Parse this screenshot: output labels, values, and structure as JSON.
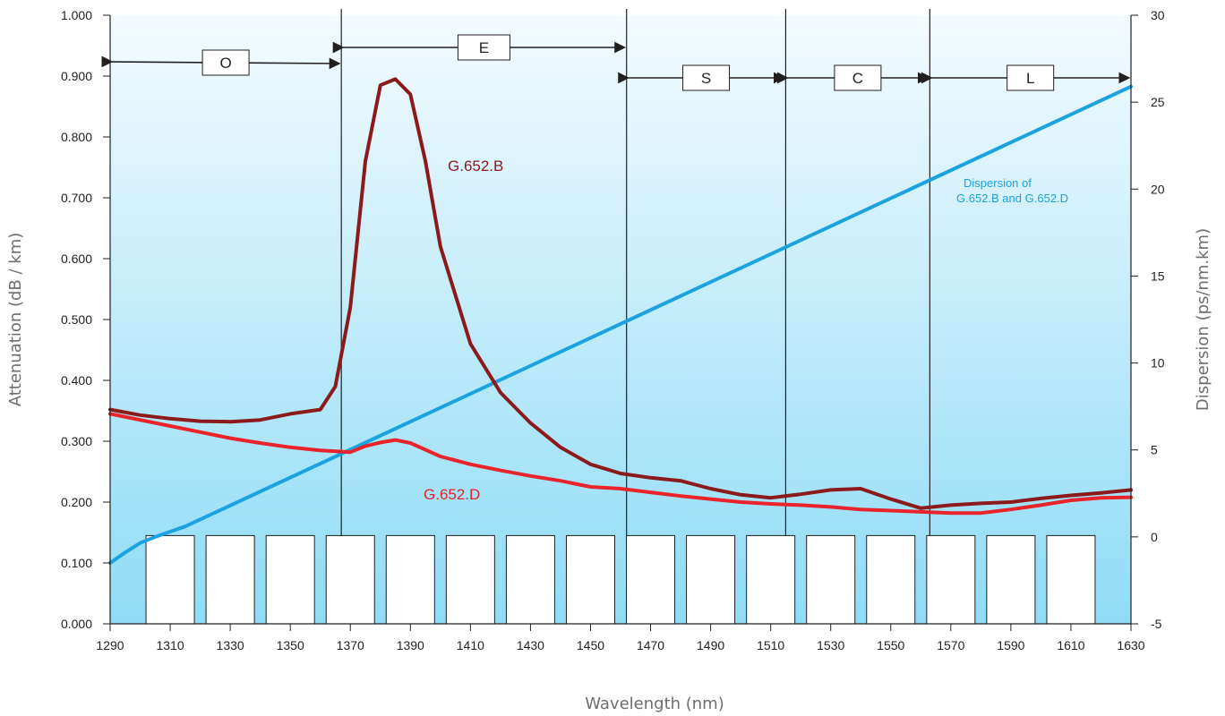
{
  "chart_data": {
    "type": "line",
    "xlabel": "Wavelength (nm)",
    "ylabel": "Attenuation (dB / km)",
    "y2label": "Dispersion (ps/nm.km)",
    "xlim": [
      1290,
      1630
    ],
    "ylim": [
      0,
      1.0
    ],
    "y2lim": [
      -5,
      30
    ],
    "x_ticks": [
      "1290",
      "1310",
      "1330",
      "1350",
      "1370",
      "1390",
      "1410",
      "1430",
      "1450",
      "1470",
      "1490",
      "1510",
      "1530",
      "1550",
      "1570",
      "1590",
      "1610",
      "1630"
    ],
    "y_ticks": [
      "0.000",
      "0.100",
      "0.200",
      "0.300",
      "0.400",
      "0.500",
      "0.600",
      "0.700",
      "0.800",
      "0.900",
      "1.000"
    ],
    "y2_ticks": [
      "-5",
      "0",
      "5",
      "10",
      "15",
      "20",
      "25",
      "30"
    ],
    "background_gradient": [
      "#f4fbfe",
      "#8fdcf6"
    ],
    "bands": [
      {
        "label": "O",
        "start": 1290,
        "end": 1367
      },
      {
        "label": "E",
        "start": 1367,
        "end": 1462
      },
      {
        "label": "S",
        "start": 1462,
        "end": 1515
      },
      {
        "label": "C",
        "start": 1515,
        "end": 1563
      },
      {
        "label": "L",
        "start": 1563,
        "end": 1630
      }
    ],
    "cwdm_channels": [
      1310,
      1330,
      1350,
      1370,
      1390,
      1410,
      1430,
      1450,
      1470,
      1490,
      1510,
      1530,
      1550,
      1570,
      1590,
      1610
    ],
    "cwdm_channel_top": 0.145,
    "series": [
      {
        "name": "G.652.B",
        "axis": "left",
        "color": "#8b1a1a",
        "x": [
          1290,
          1300,
          1310,
          1320,
          1330,
          1340,
          1350,
          1360,
          1365,
          1370,
          1375,
          1380,
          1385,
          1390,
          1395,
          1400,
          1410,
          1420,
          1430,
          1440,
          1450,
          1460,
          1470,
          1480,
          1490,
          1500,
          1510,
          1520,
          1530,
          1540,
          1550,
          1560,
          1570,
          1580,
          1590,
          1600,
          1610,
          1620,
          1630
        ],
        "y": [
          0.352,
          0.343,
          0.337,
          0.333,
          0.332,
          0.335,
          0.345,
          0.352,
          0.39,
          0.52,
          0.76,
          0.885,
          0.895,
          0.87,
          0.76,
          0.62,
          0.46,
          0.38,
          0.33,
          0.29,
          0.262,
          0.247,
          0.24,
          0.235,
          0.222,
          0.212,
          0.207,
          0.213,
          0.22,
          0.222,
          0.205,
          0.19,
          0.195,
          0.198,
          0.2,
          0.206,
          0.211,
          0.215,
          0.22
        ]
      },
      {
        "name": "G.652.D",
        "axis": "left",
        "color": "#e8232a",
        "x": [
          1290,
          1300,
          1310,
          1320,
          1330,
          1340,
          1350,
          1360,
          1370,
          1375,
          1380,
          1385,
          1390,
          1400,
          1410,
          1420,
          1430,
          1440,
          1450,
          1460,
          1470,
          1480,
          1490,
          1500,
          1510,
          1520,
          1530,
          1540,
          1550,
          1560,
          1570,
          1580,
          1590,
          1600,
          1610,
          1620,
          1630
        ],
        "y": [
          0.345,
          0.335,
          0.325,
          0.315,
          0.305,
          0.297,
          0.29,
          0.285,
          0.282,
          0.292,
          0.298,
          0.302,
          0.297,
          0.275,
          0.262,
          0.252,
          0.243,
          0.235,
          0.225,
          0.222,
          0.216,
          0.21,
          0.205,
          0.2,
          0.197,
          0.195,
          0.192,
          0.188,
          0.186,
          0.184,
          0.182,
          0.182,
          0.188,
          0.195,
          0.203,
          0.207,
          0.208
        ]
      },
      {
        "name": "Dispersion of G.652.B and G.652.D",
        "axis": "right",
        "color": "#1aa3e0",
        "x": [
          1290,
          1295,
          1300,
          1305,
          1310,
          1315,
          1630
        ],
        "y": [
          -1.5,
          -0.9,
          -0.35,
          0.0,
          0.3,
          0.6,
          25.9
        ]
      }
    ],
    "labels": {
      "g652b": "G.652.B",
      "g652d": "G.652.D",
      "dispersion_line1": "Dispersion of",
      "dispersion_line2": "G.652.B and G.652.D"
    }
  }
}
